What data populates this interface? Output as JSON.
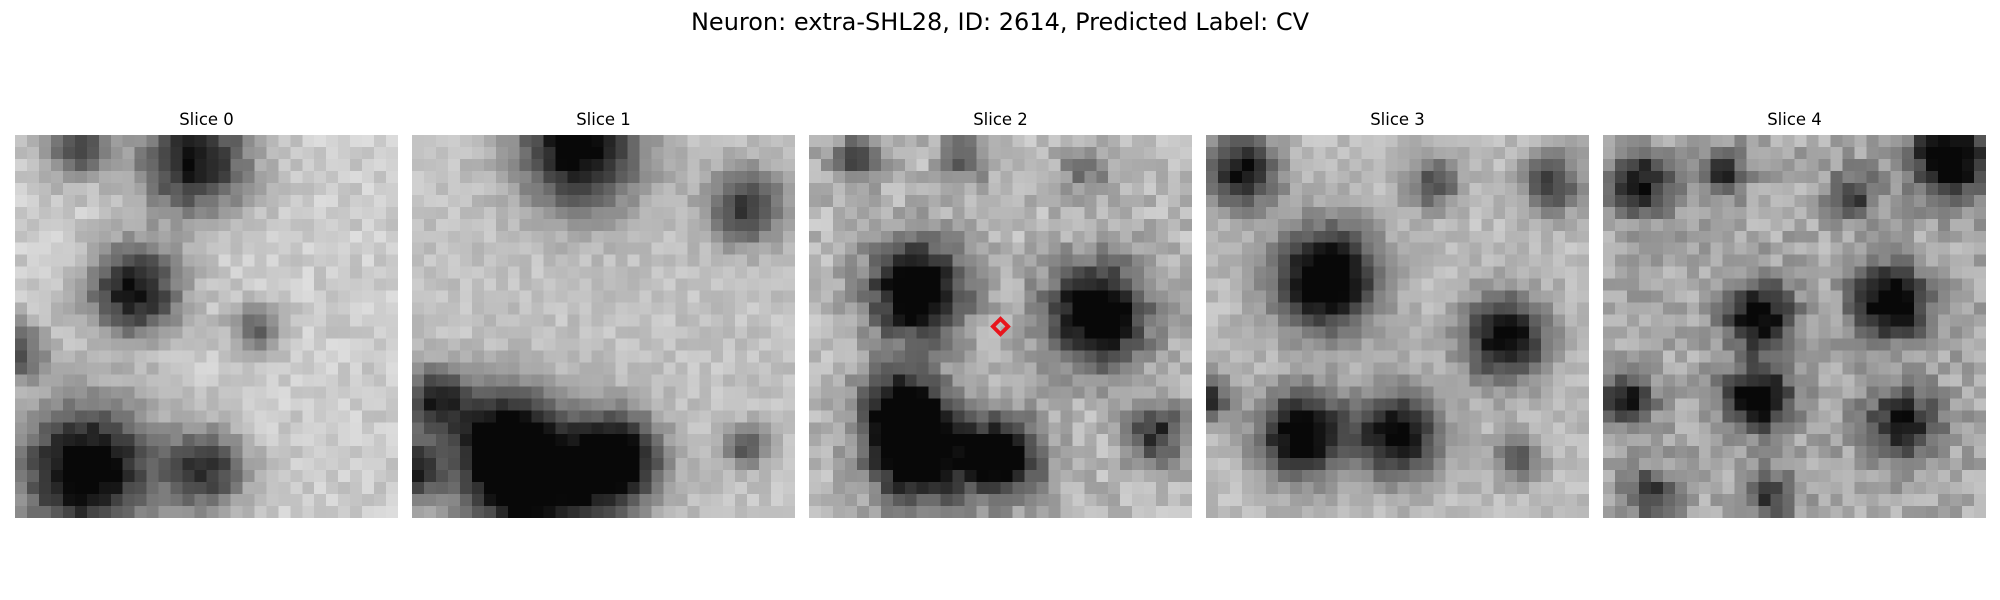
{
  "figure": {
    "title": "Neuron: extra-SHL28, ID: 2614, Predicted Label: CV"
  },
  "panels": [
    {
      "title": "Slice 0"
    },
    {
      "title": "Slice 1"
    },
    {
      "title": "Slice 2"
    },
    {
      "title": "Slice 3"
    },
    {
      "title": "Slice 4"
    }
  ],
  "colors": {
    "marker": "#e8141c",
    "dark": "#111111",
    "light": "#f4f4f4"
  }
}
